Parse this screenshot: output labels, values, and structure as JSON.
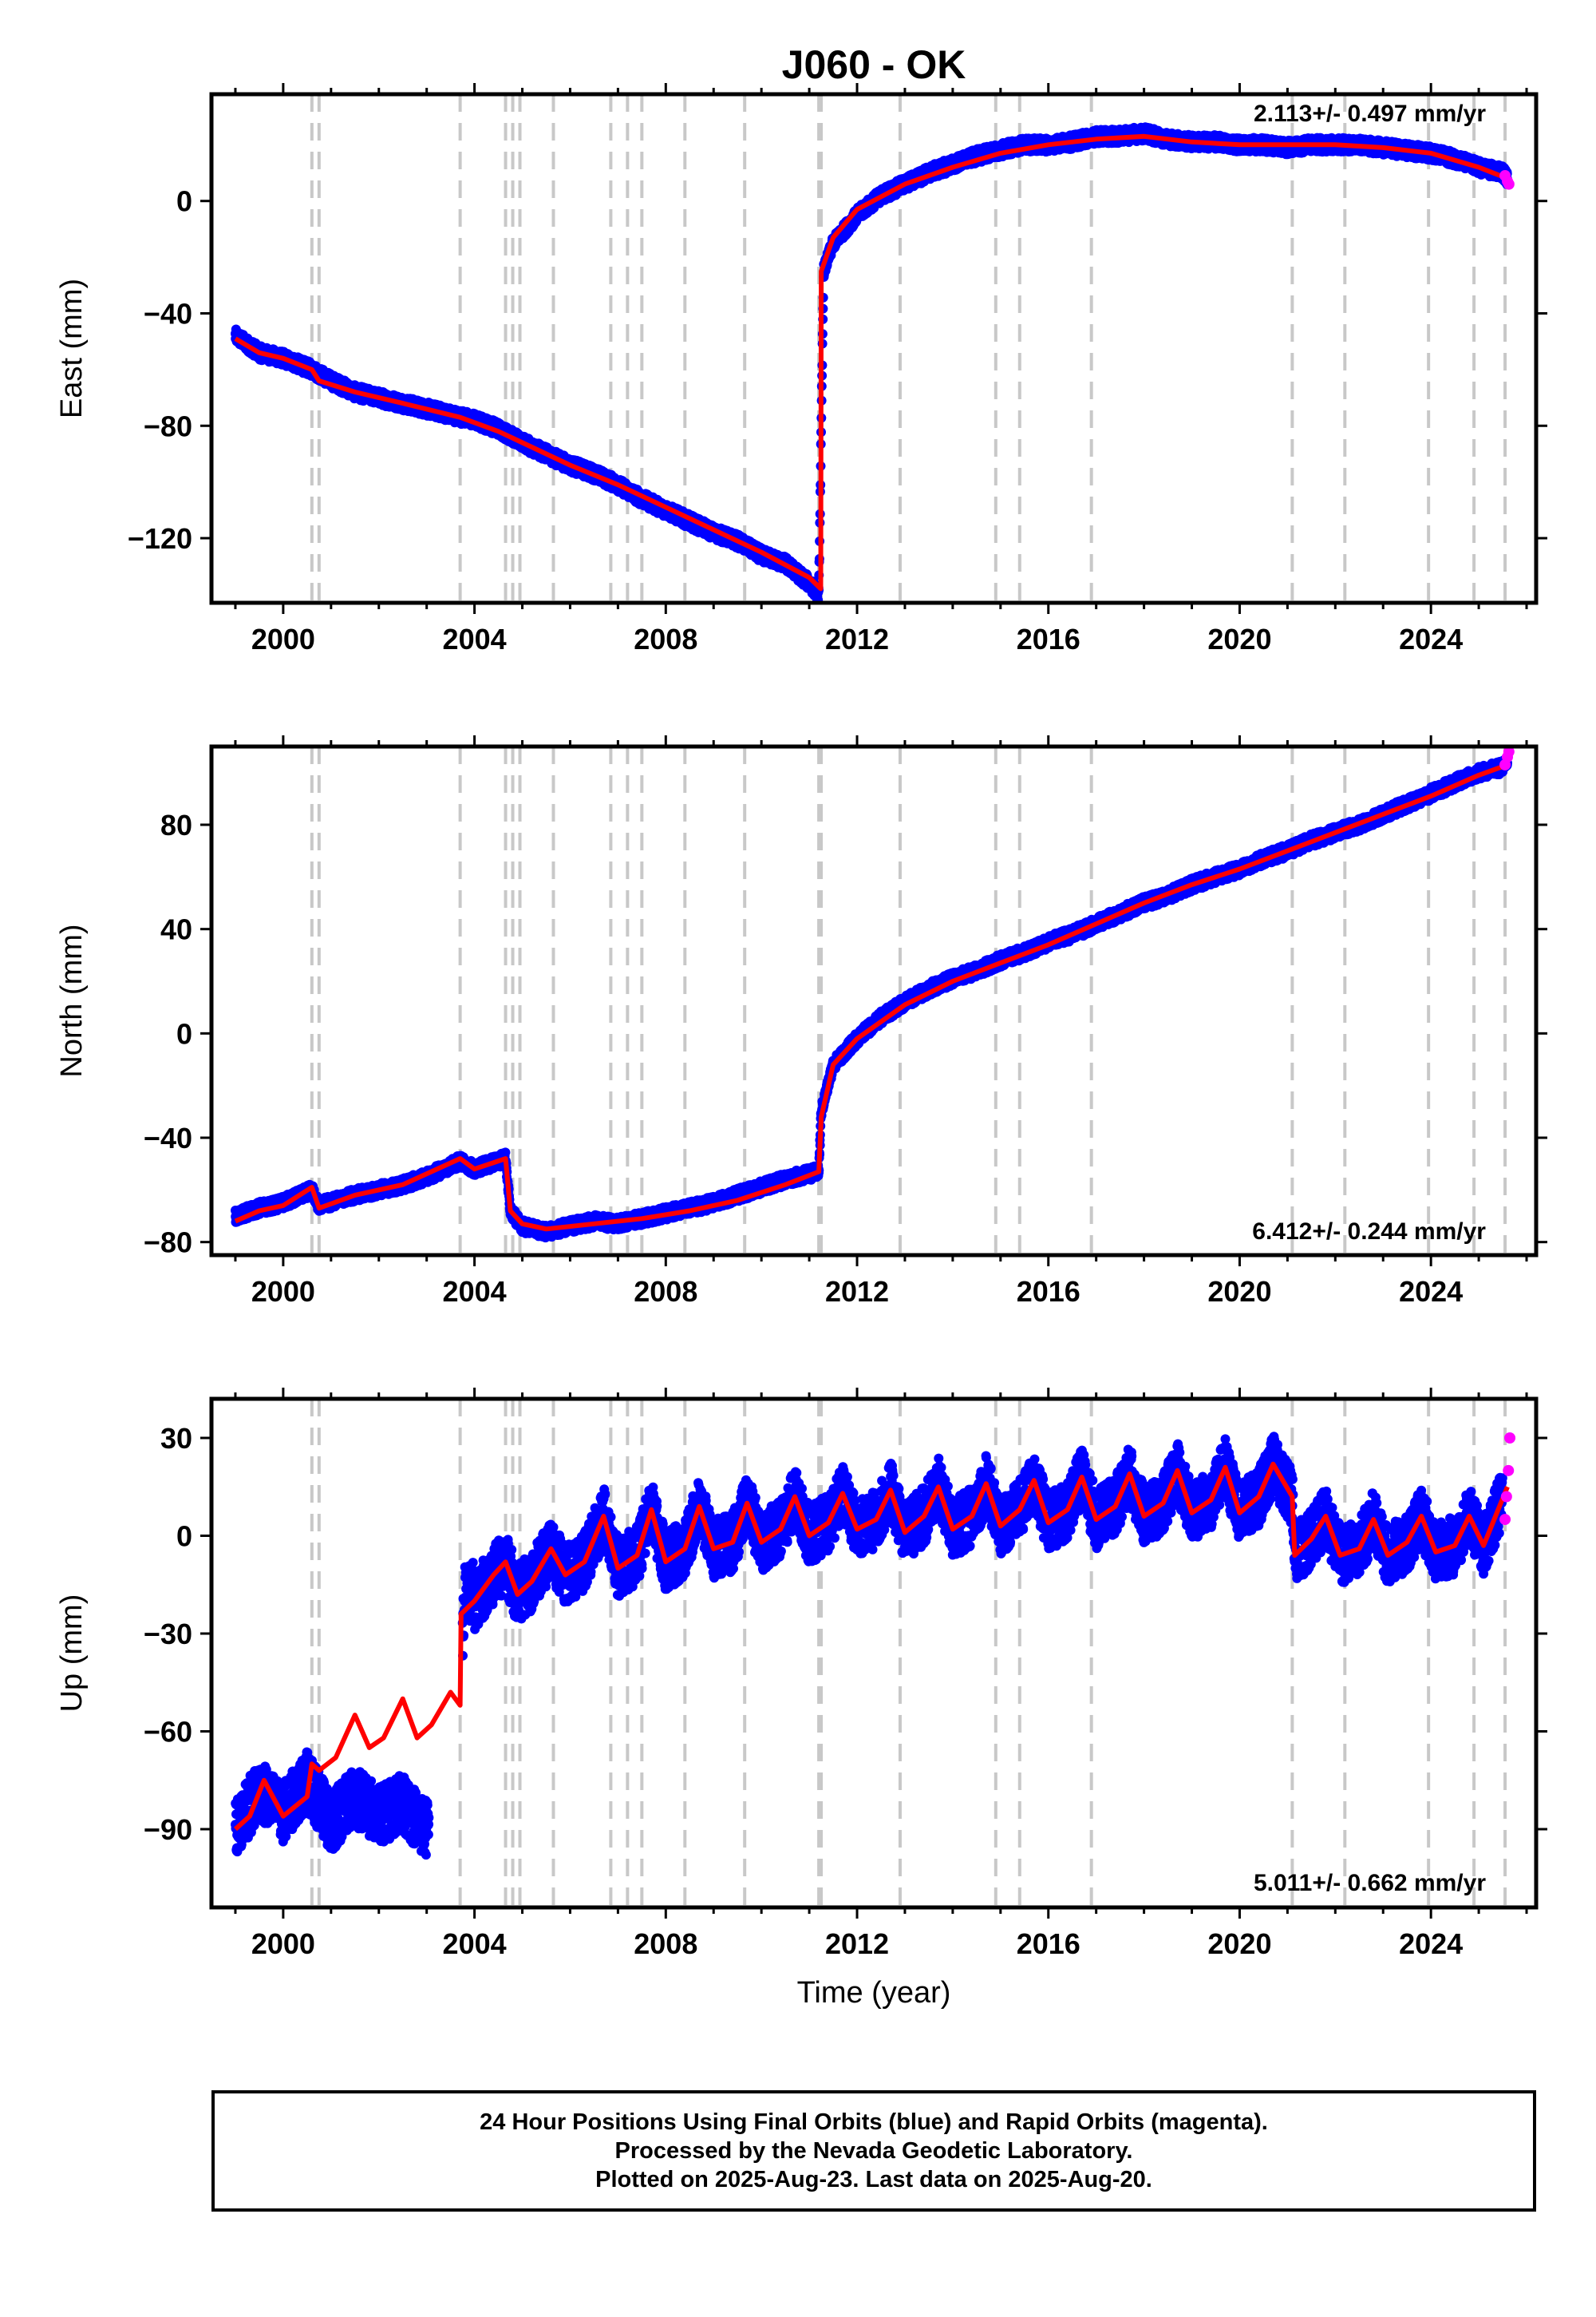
{
  "title": "J060 - OK",
  "xlabel": "Time (year)",
  "notes": [
    "24 Hour Positions Using Final Orbits (blue) and Rapid Orbits (magenta).",
    "Processed by the Nevada Geodetic Laboratory.",
    "Plotted on 2025-Aug-23. Last data on 2025-Aug-20."
  ],
  "colors": {
    "final_orbits": "#0000ff",
    "rapid_orbits": "#ff00ff",
    "model": "#ff0000",
    "event_lines": "#c8c8c8"
  },
  "chart_data": [
    {
      "type": "scatter",
      "ylabel": "East (mm)",
      "rate_text": "2.113+/- 0.497 mm/yr",
      "xlim": [
        1998.5,
        2026.2
      ],
      "ylim": [
        -143,
        38
      ],
      "xticks": [
        2000,
        2004,
        2008,
        2012,
        2016,
        2020,
        2024
      ],
      "yticks": [
        -120,
        -80,
        -40,
        0
      ],
      "event_lines": [
        2000.6,
        2000.75,
        2003.7,
        2004.65,
        2004.8,
        2004.95,
        2005.65,
        2006.85,
        2007.2,
        2007.5,
        2008.4,
        2009.65,
        2011.2,
        2011.25,
        2012.9,
        2014.9,
        2015.4,
        2016.9,
        2021.1,
        2022.2,
        2023.95,
        2024.9,
        2025.55
      ],
      "series": [
        {
          "kind": "final",
          "x": [
            1999.0,
            1999.5,
            2000.0,
            2000.6,
            2001.0,
            2001.5,
            2002.0,
            2002.5,
            2003.0,
            2003.5,
            2004.0,
            2004.5,
            2005.0,
            2005.5,
            2006.0,
            2006.5,
            2007.0,
            2007.5,
            2008.0,
            2008.5,
            2009.0,
            2009.5,
            2010.0,
            2010.5,
            2011.0,
            2011.2,
            2011.3,
            2011.5,
            2012.0,
            2012.5,
            2013.0,
            2013.5,
            2014.0,
            2014.5,
            2015.0,
            2015.5,
            2016.0,
            2016.5,
            2017.0,
            2017.5,
            2018.0,
            2018.5,
            2019.0,
            2019.5,
            2020.0,
            2020.5,
            2021.0,
            2021.5,
            2022.0,
            2022.5,
            2023.0,
            2023.5,
            2024.0,
            2024.5,
            2025.0,
            2025.5,
            2025.6
          ],
          "y": [
            -48,
            -54,
            -56,
            -60,
            -64,
            -68,
            -70,
            -72,
            -74,
            -76,
            -78,
            -81,
            -86,
            -90,
            -94,
            -97,
            -101,
            -106,
            -110,
            -114,
            -118,
            -121,
            -126,
            -129,
            -136,
            -140,
            -25,
            -15,
            -5,
            2,
            6,
            10,
            13,
            16,
            18,
            20,
            20,
            21,
            23,
            23,
            24,
            22,
            21,
            21,
            20,
            20,
            19,
            20,
            20,
            20,
            19,
            18,
            17,
            15,
            12,
            10,
            8
          ]
        },
        {
          "kind": "model",
          "x": [
            1999.0,
            1999.5,
            2000.0,
            2000.6,
            2000.75,
            2001.5,
            2002.5,
            2003.7,
            2004.5,
            2005.0,
            2006.0,
            2007.0,
            2008.0,
            2009.0,
            2010.0,
            2011.0,
            2011.24,
            2011.25,
            2011.5,
            2012.0,
            2013.0,
            2014.0,
            2015.0,
            2016.0,
            2017.0,
            2018.0,
            2019.0,
            2020.0,
            2021.0,
            2022.0,
            2023.0,
            2024.0,
            2025.0,
            2025.6
          ],
          "y": [
            -49,
            -54,
            -56,
            -60,
            -64,
            -68,
            -72,
            -77,
            -82,
            -86,
            -94,
            -101,
            -109,
            -117,
            -125,
            -134,
            -138,
            -25,
            -13,
            -3,
            6,
            12,
            17,
            20,
            22,
            23,
            21,
            20,
            20,
            20,
            19,
            17,
            12,
            8
          ]
        },
        {
          "kind": "rapid",
          "x": [
            2025.55,
            2025.6,
            2025.63
          ],
          "y": [
            9,
            7,
            6
          ]
        }
      ]
    },
    {
      "type": "scatter",
      "ylabel": "North (mm)",
      "rate_text": "6.412+/- 0.244 mm/yr",
      "xlim": [
        1998.5,
        2026.2
      ],
      "ylim": [
        -85,
        110
      ],
      "xticks": [
        2000,
        2004,
        2008,
        2012,
        2016,
        2020,
        2024
      ],
      "yticks": [
        -80,
        -40,
        0,
        40,
        80
      ],
      "event_lines": [
        2000.6,
        2000.75,
        2003.7,
        2004.65,
        2004.8,
        2004.95,
        2005.65,
        2006.85,
        2007.2,
        2007.5,
        2008.4,
        2009.65,
        2011.2,
        2011.25,
        2012.9,
        2014.9,
        2015.4,
        2016.9,
        2021.1,
        2022.2,
        2023.95,
        2024.9,
        2025.55
      ],
      "series": [
        {
          "kind": "final",
          "x": [
            1999.0,
            1999.5,
            2000.0,
            2000.6,
            2000.75,
            2001.5,
            2002.0,
            2002.5,
            2003.0,
            2003.7,
            2004.0,
            2004.65,
            2004.75,
            2005.0,
            2005.5,
            2006.0,
            2006.5,
            2007.0,
            2007.5,
            2008.0,
            2008.5,
            2009.0,
            2009.5,
            2010.0,
            2010.5,
            2011.2,
            2011.25,
            2011.5,
            2012.0,
            2012.5,
            2013.0,
            2013.5,
            2014.0,
            2014.5,
            2015.0,
            2015.5,
            2016.0,
            2016.5,
            2017.0,
            2017.5,
            2018.0,
            2018.5,
            2019.0,
            2019.5,
            2020.0,
            2020.5,
            2021.0,
            2021.5,
            2022.0,
            2022.5,
            2023.0,
            2023.5,
            2024.0,
            2024.5,
            2025.0,
            2025.5,
            2025.6
          ],
          "y": [
            -70,
            -67,
            -65,
            -60,
            -66,
            -62,
            -60,
            -58,
            -55,
            -49,
            -52,
            -48,
            -68,
            -74,
            -76,
            -74,
            -72,
            -73,
            -71,
            -69,
            -67,
            -65,
            -62,
            -59,
            -56,
            -53,
            -30,
            -12,
            -2,
            6,
            12,
            17,
            21,
            24,
            28,
            31,
            35,
            38,
            42,
            46,
            50,
            53,
            57,
            60,
            63,
            67,
            70,
            74,
            77,
            80,
            84,
            88,
            92,
            96,
            100,
            102,
            104
          ]
        },
        {
          "kind": "model",
          "x": [
            1999.0,
            1999.5,
            2000.0,
            2000.6,
            2000.75,
            2001.5,
            2002.5,
            2003.7,
            2004.0,
            2004.65,
            2004.75,
            2005.0,
            2005.5,
            2006.5,
            2007.5,
            2008.5,
            2009.5,
            2010.5,
            2011.2,
            2011.25,
            2011.5,
            2012.0,
            2013.0,
            2014.0,
            2015.0,
            2016.0,
            2017.0,
            2018.0,
            2019.0,
            2020.0,
            2021.0,
            2022.0,
            2023.0,
            2024.0,
            2025.0,
            2025.6
          ],
          "y": [
            -72,
            -68,
            -66,
            -59,
            -67,
            -62,
            -58,
            -48,
            -52,
            -48,
            -68,
            -73,
            -75,
            -73,
            -71,
            -68,
            -64,
            -58,
            -53,
            -32,
            -12,
            -2,
            11,
            20,
            27,
            34,
            42,
            50,
            57,
            63,
            70,
            77,
            84,
            91,
            99,
            103
          ]
        },
        {
          "kind": "rapid",
          "x": [
            2025.55,
            2025.6,
            2025.63
          ],
          "y": [
            103,
            106,
            108
          ]
        }
      ]
    },
    {
      "type": "scatter",
      "ylabel": "Up (mm)",
      "rate_text": "5.011+/- 0.662 mm/yr",
      "xlim": [
        1998.5,
        2026.2
      ],
      "ylim": [
        -114,
        42
      ],
      "xticks": [
        2000,
        2004,
        2008,
        2012,
        2016,
        2020,
        2024
      ],
      "yticks": [
        -90,
        -60,
        -30,
        0,
        30
      ],
      "event_lines": [
        2000.6,
        2000.75,
        2003.7,
        2004.65,
        2004.8,
        2004.95,
        2005.65,
        2006.85,
        2007.2,
        2007.5,
        2008.4,
        2009.65,
        2011.2,
        2011.25,
        2012.9,
        2014.9,
        2015.4,
        2016.9,
        2021.1,
        2022.2,
        2023.95,
        2024.9,
        2025.55
      ],
      "series": [
        {
          "kind": "final",
          "x": [
            1999.0,
            1999.5,
            2000.0,
            2000.5,
            2001.0,
            2001.5,
            2002.0,
            2002.5,
            2003.0,
            2003.5,
            2003.8,
            2004.3,
            2004.8,
            2005.3,
            2005.8,
            2006.3,
            2006.8,
            2007.3,
            2007.8,
            2008.3,
            2008.8,
            2009.3,
            2009.8,
            2010.3,
            2010.8,
            2011.3,
            2011.8,
            2012.3,
            2012.8,
            2013.3,
            2013.8,
            2014.3,
            2014.8,
            2015.3,
            2015.8,
            2016.3,
            2016.8,
            2017.3,
            2017.8,
            2018.3,
            2018.8,
            2019.3,
            2019.8,
            2020.3,
            2020.8,
            2021.2,
            2021.7,
            2022.2,
            2022.7,
            2023.2,
            2023.7,
            2024.2,
            2024.7,
            2025.2,
            2025.5
          ],
          "y": [
            -90,
            -78,
            -85,
            -75,
            -88,
            -80,
            -86,
            -82,
            -90,
            -92,
            -18,
            -15,
            -12,
            -8,
            -5,
            -2,
            -6,
            -3,
            -5,
            -2,
            -3,
            -1,
            -2,
            0,
            3,
            5,
            3,
            8,
            5,
            10,
            6,
            12,
            8,
            11,
            6,
            12,
            8,
            14,
            9,
            12,
            10,
            14,
            11,
            15,
            12,
            -2,
            -8,
            -1,
            -6,
            2,
            -4,
            3,
            -3,
            6,
            5
          ]
        },
        {
          "kind": "model",
          "x": [
            1999.0,
            1999.3,
            1999.6,
            2000.0,
            2000.5,
            2000.6,
            2000.75,
            2001.1,
            2001.5,
            2001.8,
            2002.1,
            2002.5,
            2002.8,
            2003.1,
            2003.5,
            2003.7,
            2003.72,
            2004.0,
            2004.4,
            2004.65,
            2004.9,
            2005.2,
            2005.6,
            2005.9,
            2006.3,
            2006.7,
            2007.0,
            2007.4,
            2007.7,
            2008.0,
            2008.4,
            2008.7,
            2009.0,
            2009.4,
            2009.7,
            2010.0,
            2010.4,
            2010.7,
            2011.0,
            2011.4,
            2011.7,
            2012.0,
            2012.4,
            2012.7,
            2013.0,
            2013.4,
            2013.7,
            2014.0,
            2014.4,
            2014.7,
            2015.0,
            2015.4,
            2015.7,
            2016.0,
            2016.4,
            2016.7,
            2017.0,
            2017.4,
            2017.7,
            2018.0,
            2018.4,
            2018.7,
            2019.0,
            2019.4,
            2019.7,
            2020.0,
            2020.4,
            2020.7,
            2021.1,
            2021.15,
            2021.5,
            2021.8,
            2022.1,
            2022.5,
            2022.8,
            2023.1,
            2023.5,
            2023.8,
            2024.1,
            2024.5,
            2024.8,
            2025.1,
            2025.6
          ],
          "y": [
            -90,
            -86,
            -75,
            -86,
            -80,
            -70,
            -72,
            -68,
            -55,
            -65,
            -62,
            -50,
            -62,
            -58,
            -48,
            -52,
            -24,
            -20,
            -12,
            -8,
            -18,
            -14,
            -4,
            -12,
            -8,
            6,
            -10,
            -6,
            8,
            -8,
            -4,
            9,
            -4,
            -2,
            10,
            -2,
            2,
            12,
            0,
            4,
            13,
            2,
            5,
            14,
            1,
            6,
            15,
            2,
            6,
            16,
            3,
            8,
            17,
            4,
            8,
            18,
            5,
            9,
            19,
            6,
            10,
            20,
            7,
            11,
            21,
            7,
            12,
            22,
            12,
            -6,
            -1,
            6,
            -6,
            -4,
            5,
            -6,
            -2,
            6,
            -5,
            -3,
            6,
            -3,
            15
          ]
        },
        {
          "kind": "rapid",
          "x": [
            2025.55,
            2025.58,
            2025.62,
            2025.65
          ],
          "y": [
            5,
            12,
            20,
            30
          ]
        }
      ]
    }
  ]
}
